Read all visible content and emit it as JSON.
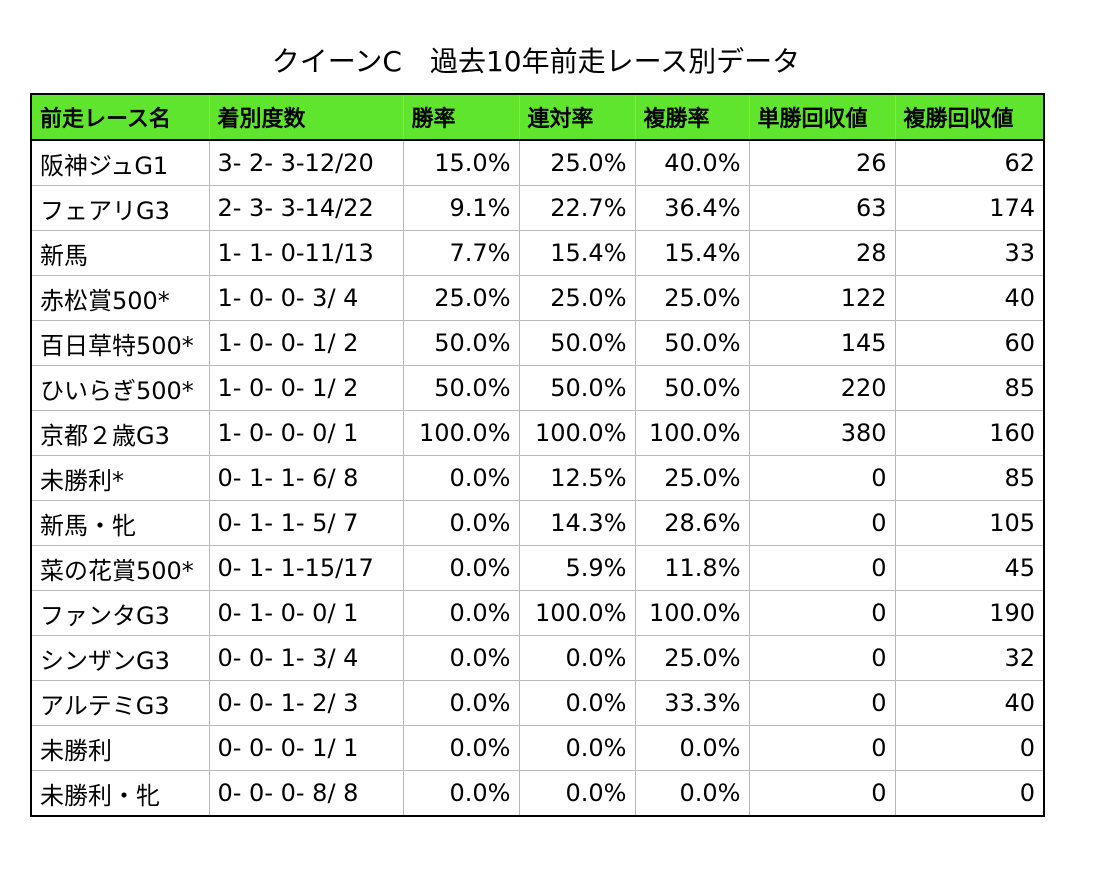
{
  "title": "クイーンC　過去10年前走レース別データ",
  "header_color": "#5fe52e",
  "columns": [
    "前走レース名",
    "着別度数",
    "勝率",
    "連対率",
    "複勝率",
    "単勝回収値",
    "複勝回収値"
  ],
  "rows": [
    {
      "race": "阪神ジュG1",
      "record": "3- 2- 3-12/20",
      "win": "15.0%",
      "quinella": "25.0%",
      "place": "40.0%",
      "win_return": "26",
      "place_return": "62"
    },
    {
      "race": "フェアリG3",
      "record": "2- 3- 3-14/22",
      "win": "9.1%",
      "quinella": "22.7%",
      "place": "36.4%",
      "win_return": "63",
      "place_return": "174"
    },
    {
      "race": "新馬",
      "record": "1- 1- 0-11/13",
      "win": "7.7%",
      "quinella": "15.4%",
      "place": "15.4%",
      "win_return": "28",
      "place_return": "33"
    },
    {
      "race": "赤松賞500*",
      "record": "1- 0- 0- 3/ 4",
      "win": "25.0%",
      "quinella": "25.0%",
      "place": "25.0%",
      "win_return": "122",
      "place_return": "40"
    },
    {
      "race": "百日草特500*",
      "record": "1- 0- 0- 1/ 2",
      "win": "50.0%",
      "quinella": "50.0%",
      "place": "50.0%",
      "win_return": "145",
      "place_return": "60"
    },
    {
      "race": "ひいらぎ500*",
      "record": "1- 0- 0- 1/ 2",
      "win": "50.0%",
      "quinella": "50.0%",
      "place": "50.0%",
      "win_return": "220",
      "place_return": "85"
    },
    {
      "race": "京都２歳G3",
      "record": "1- 0- 0- 0/ 1",
      "win": "100.0%",
      "quinella": "100.0%",
      "place": "100.0%",
      "win_return": "380",
      "place_return": "160"
    },
    {
      "race": "未勝利*",
      "record": "0- 1- 1- 6/ 8",
      "win": "0.0%",
      "quinella": "12.5%",
      "place": "25.0%",
      "win_return": "0",
      "place_return": "85"
    },
    {
      "race": "新馬・牝",
      "record": "0- 1- 1- 5/ 7",
      "win": "0.0%",
      "quinella": "14.3%",
      "place": "28.6%",
      "win_return": "0",
      "place_return": "105"
    },
    {
      "race": "菜の花賞500*",
      "record": "0- 1- 1-15/17",
      "win": "0.0%",
      "quinella": "5.9%",
      "place": "11.8%",
      "win_return": "0",
      "place_return": "45"
    },
    {
      "race": "ファンタG3",
      "record": "0- 1- 0- 0/ 1",
      "win": "0.0%",
      "quinella": "100.0%",
      "place": "100.0%",
      "win_return": "0",
      "place_return": "190"
    },
    {
      "race": "シンザンG3",
      "record": "0- 0- 1- 3/ 4",
      "win": "0.0%",
      "quinella": "0.0%",
      "place": "25.0%",
      "win_return": "0",
      "place_return": "32"
    },
    {
      "race": "アルテミG3",
      "record": "0- 0- 1- 2/ 3",
      "win": "0.0%",
      "quinella": "0.0%",
      "place": "33.3%",
      "win_return": "0",
      "place_return": "40"
    },
    {
      "race": "未勝利",
      "record": "0- 0- 0- 1/ 1",
      "win": "0.0%",
      "quinella": "0.0%",
      "place": "0.0%",
      "win_return": "0",
      "place_return": "0"
    },
    {
      "race": "未勝利・牝",
      "record": "0- 0- 0- 8/ 8",
      "win": "0.0%",
      "quinella": "0.0%",
      "place": "0.0%",
      "win_return": "0",
      "place_return": "0"
    }
  ]
}
